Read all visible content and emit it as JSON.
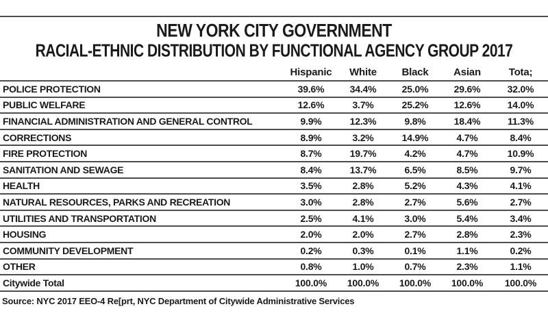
{
  "chart_data": {
    "type": "table",
    "title": "NEW YORK CITY GOVERNMENT",
    "subtitle": "RACIAL-ETHNIC DISTRIBUTION BY FUNCTIONAL AGENCY GROUP 2017",
    "columns": [
      "Hispanic",
      "White",
      "Black",
      "Asian",
      "Tota;"
    ],
    "rows": [
      {
        "label": "POLICE PROTECTION",
        "values": [
          "39.6%",
          "34.4%",
          "25.0%",
          "29.6%",
          "32.0%"
        ]
      },
      {
        "label": "PUBLIC WELFARE",
        "values": [
          "12.6%",
          "3.7%",
          "25.2%",
          "12.6%",
          "14.0%"
        ]
      },
      {
        "label": "FINANCIAL ADMINISTRATION AND GENERAL CONTROL",
        "values": [
          "9.9%",
          "12.3%",
          "9.8%",
          "18.4%",
          "11.3%"
        ]
      },
      {
        "label": "CORRECTIONS",
        "values": [
          "8.9%",
          "3.2%",
          "14.9%",
          "4.7%",
          "8.4%"
        ]
      },
      {
        "label": "FIRE PROTECTION",
        "values": [
          "8.7%",
          "19.7%",
          "4.2%",
          "4.7%",
          "10.9%"
        ]
      },
      {
        "label": "SANITATION AND SEWAGE",
        "values": [
          "8.4%",
          "13.7%",
          "6.5%",
          "8.5%",
          "9.7%"
        ]
      },
      {
        "label": "HEALTH",
        "values": [
          "3.5%",
          "2.8%",
          "5.2%",
          "4.3%",
          "4.1%"
        ]
      },
      {
        "label": "NATURAL RESOURCES, PARKS AND RECREATION",
        "values": [
          "3.0%",
          "2.8%",
          "2.7%",
          "5.6%",
          "2.7%"
        ]
      },
      {
        "label": "UTILITIES AND TRANSPORTATION",
        "values": [
          "2.5%",
          "4.1%",
          "3.0%",
          "5.4%",
          "3.4%"
        ]
      },
      {
        "label": "HOUSING",
        "values": [
          "2.0%",
          "2.0%",
          "2.7%",
          "2.8%",
          "2.3%"
        ]
      },
      {
        "label": "COMMUNITY DEVELOPMENT",
        "values": [
          "0.2%",
          "0.3%",
          "0.1%",
          "1.1%",
          "0.2%"
        ]
      },
      {
        "label": "OTHER",
        "values": [
          "0.8%",
          "1.0%",
          "0.7%",
          "2.3%",
          "1.1%"
        ]
      },
      {
        "label": "Citywide Total",
        "values": [
          "100.0%",
          "100.0%",
          "100.0%",
          "100.0%",
          "100.0%"
        ]
      }
    ],
    "source": "Source: NYC 2017 EEO-4 Re[prt, NYC Department of Citywide Administrative Services",
    "layout": {
      "text_color": "#1a1a1a",
      "rule_color": "#4d4d4d",
      "background": "#ffffff",
      "grid": "horizontal-rules-only",
      "value_alignment": "center"
    }
  }
}
